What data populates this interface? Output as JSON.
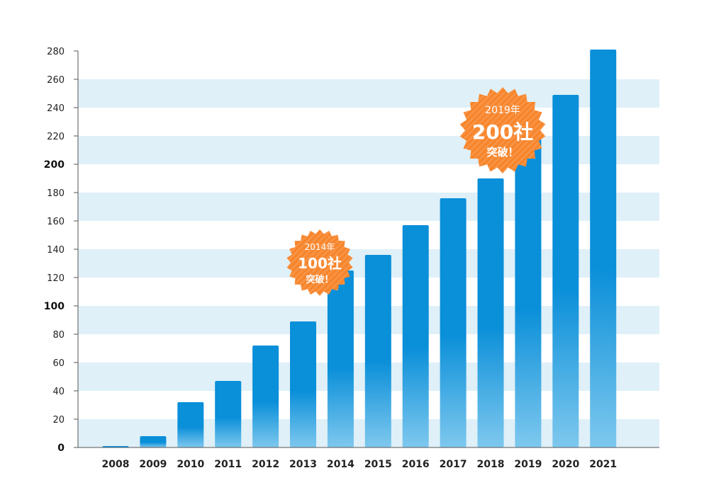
{
  "chart_data": {
    "type": "bar",
    "categories": [
      "2008",
      "2009",
      "2010",
      "2011",
      "2012",
      "2013",
      "2014",
      "2015",
      "2016",
      "2017",
      "2018",
      "2019",
      "2020",
      "2021"
    ],
    "values": [
      1,
      8,
      32,
      47,
      72,
      89,
      125,
      136,
      157,
      176,
      190,
      218,
      249,
      281
    ],
    "ylim": [
      0,
      280
    ],
    "yticks": [
      0,
      20,
      40,
      60,
      80,
      100,
      120,
      140,
      160,
      180,
      200,
      220,
      240,
      260,
      280
    ],
    "ytick_labels": [
      "0",
      "20",
      "40",
      "60",
      "80",
      "100",
      "120",
      "140",
      "160",
      "180",
      "200",
      "220",
      "240",
      "260",
      "280"
    ],
    "major_ticks": [
      0,
      100,
      200
    ],
    "bar_color_top": "#0a8fd9",
    "bar_color_bottom": "#7ec8ee",
    "band_color": "#dff0f8",
    "grid": "alternating horizontal bands",
    "annotations": [
      {
        "category": "2014",
        "value": 100,
        "year_text": "2014年",
        "count_text": "100社",
        "note_text": "突破！",
        "color": "#f7842a"
      },
      {
        "category": "2019",
        "value": 200,
        "year_text": "2019年",
        "count_text": "200社",
        "note_text": "突破！",
        "color": "#f7842a"
      }
    ]
  }
}
